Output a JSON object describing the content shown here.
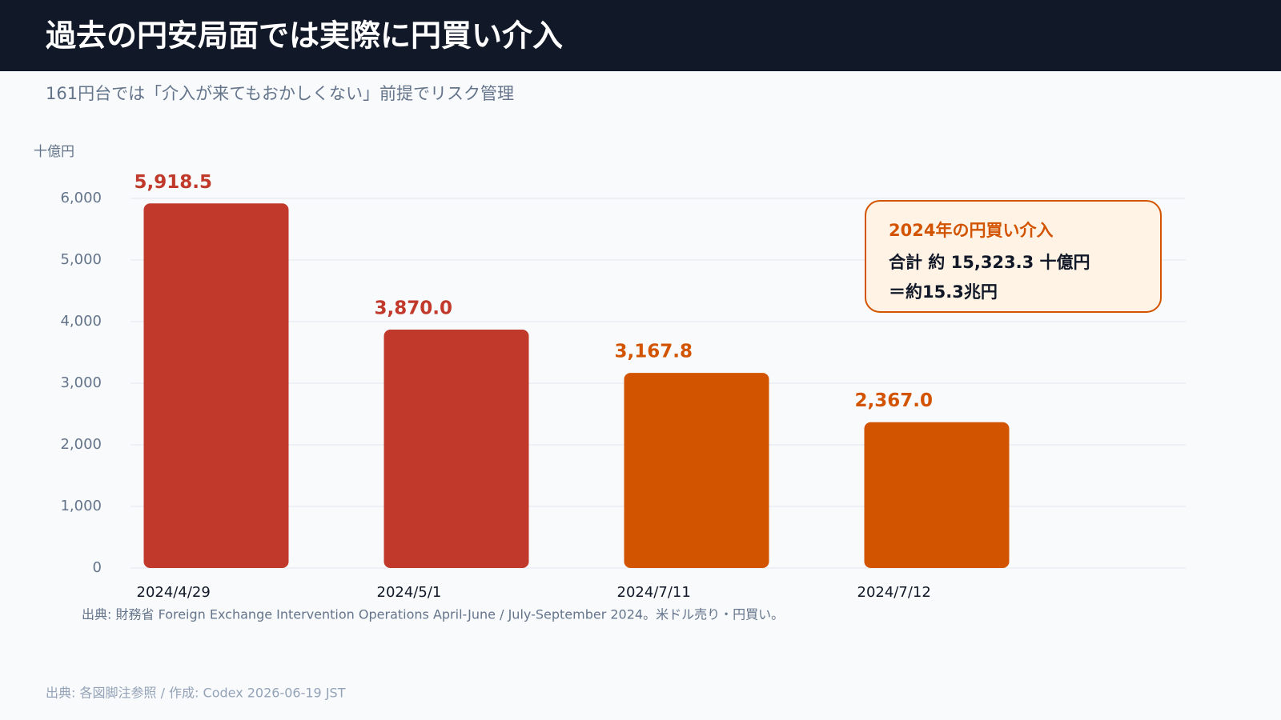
{
  "chart_data": {
    "type": "bar",
    "title": "過去の円安局面では実際に円買い介入",
    "subtitle": "161円台では「介入が来てもおかしくない」前提でリスク管理",
    "y_label": "十億円",
    "categories": [
      "2024/4/29",
      "2024/5/1",
      "2024/7/11",
      "2024/7/12"
    ],
    "values": [
      5918.5,
      3870.0,
      3167.8,
      2367.0
    ],
    "value_labels": [
      "5,918.5",
      "3,870.0",
      "3,167.8",
      "2,367.0"
    ],
    "colors": [
      "#c0392b",
      "#c0392b",
      "#d35400",
      "#d35400"
    ],
    "ylim": [
      0,
      6000
    ],
    "yticks": [
      0,
      {
        "value": 1000,
        "label": "1,000"
      },
      {
        "value": 2000,
        "label": "2,000"
      },
      {
        "value": 3000,
        "label": "3,000"
      },
      {
        "value": 4000,
        "label": "4,000"
      },
      {
        "value": 5000,
        "label": "5,000"
      },
      {
        "value": 6000,
        "label": "6,000"
      }
    ],
    "grid": true,
    "annotation": {
      "title": "2024年の円買い介入",
      "lines": [
        "合計 約 15,323.3 十億円",
        "＝約15.3兆円"
      ]
    },
    "source": "出典: 財務省 Foreign Exchange Intervention Operations April-June / July-September 2024。米ドル売り・円買い。",
    "footer": "出典: 各図脚注参照 / 作成: Codex 2026-06-19 JST"
  }
}
